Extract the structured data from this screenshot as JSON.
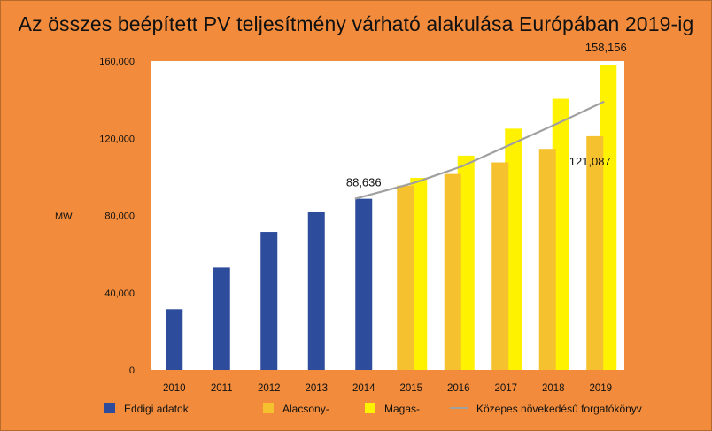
{
  "title": "Az összes beépített PV teljesítmény várható alakulása Európában 2019-ig",
  "chart_data": {
    "type": "bar",
    "title": "Az összes beépített PV teljesítmény várható alakulása Európában 2019-ig",
    "ylabel": "MW",
    "xlabel": "",
    "ylim": [
      0,
      160000
    ],
    "yticks": [
      0,
      40000,
      80000,
      120000,
      160000
    ],
    "ytick_labels": [
      "0",
      "40,000",
      "80,000",
      "120,000",
      "160,000"
    ],
    "categories": [
      "2010",
      "2011",
      "2012",
      "2013",
      "2014",
      "2015",
      "2016",
      "2017",
      "2018",
      "2019"
    ],
    "series": [
      {
        "name": "Eddigi adatok",
        "color": "#2e4c9c",
        "values": [
          31500,
          53000,
          71500,
          82000,
          88636,
          null,
          null,
          null,
          null,
          null
        ]
      },
      {
        "name": "Alacsony-",
        "color": "#f5c12e",
        "values": [
          null,
          null,
          null,
          null,
          null,
          95500,
          101500,
          107500,
          114500,
          121087
        ]
      },
      {
        "name": "Magas-",
        "color": "#fff200",
        "values": [
          null,
          null,
          null,
          null,
          null,
          99500,
          111000,
          125000,
          140500,
          158156
        ]
      },
      {
        "name": "Közepes növekedésű forgatókönyv",
        "type": "line",
        "color": "#a0a0a0",
        "x": [
          "2014",
          "2015",
          "2016",
          "2017",
          "2018",
          "2019"
        ],
        "values": [
          88636,
          97000,
          105500,
          116500,
          127500,
          139000
        ]
      }
    ],
    "annotations": [
      {
        "text": "88,636"
      },
      {
        "text": "158,156"
      },
      {
        "text": "121,087"
      }
    ],
    "grid": false,
    "legend_position": "bottom"
  }
}
